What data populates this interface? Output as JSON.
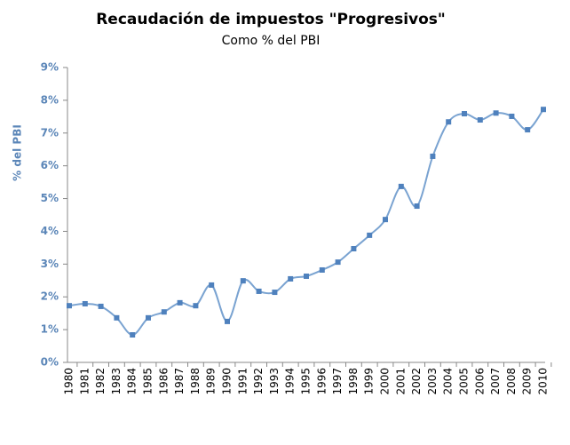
{
  "chart_data": {
    "type": "line",
    "title": "Recaudación de impuestos \"Progresivos\"",
    "subtitle": "Como % del PBI",
    "y_label": "% del PBI",
    "categories": [
      "1980",
      "1981",
      "1982",
      "1983",
      "1984",
      "1985",
      "1986",
      "1987",
      "1988",
      "1989",
      "1990",
      "1991",
      "1992",
      "1993",
      "1994",
      "1995",
      "1996",
      "1997",
      "1998",
      "1999",
      "2000",
      "2001",
      "2002",
      "2003",
      "2004",
      "2005",
      "2006",
      "2007",
      "2008",
      "2009",
      "2010"
    ],
    "series": [
      {
        "name": "Recaudación",
        "color": "#4f81bd",
        "values": [
          1.73,
          1.79,
          1.71,
          1.36,
          0.84,
          1.36,
          1.54,
          1.82,
          1.73,
          2.36,
          1.25,
          2.49,
          2.17,
          2.14,
          2.55,
          2.63,
          2.82,
          3.06,
          3.47,
          3.88,
          4.36,
          5.37,
          4.77,
          6.29,
          7.34,
          7.59,
          7.4,
          7.61,
          7.51,
          7.1,
          7.72
        ]
      }
    ],
    "ylim": [
      0,
      9
    ],
    "yticks": [
      {
        "value": 0,
        "label": "0%"
      },
      {
        "value": 1,
        "label": "1%"
      },
      {
        "value": 2,
        "label": "2%"
      },
      {
        "value": 3,
        "label": "3%"
      },
      {
        "value": 4,
        "label": "4%"
      },
      {
        "value": 5,
        "label": "5%"
      },
      {
        "value": 6,
        "label": "6%"
      },
      {
        "value": 7,
        "label": "7%"
      },
      {
        "value": 8,
        "label": "8%"
      },
      {
        "value": 9,
        "label": "9%"
      }
    ],
    "line_color": "#7aa3d1",
    "axis_color": "#5b86b8"
  }
}
